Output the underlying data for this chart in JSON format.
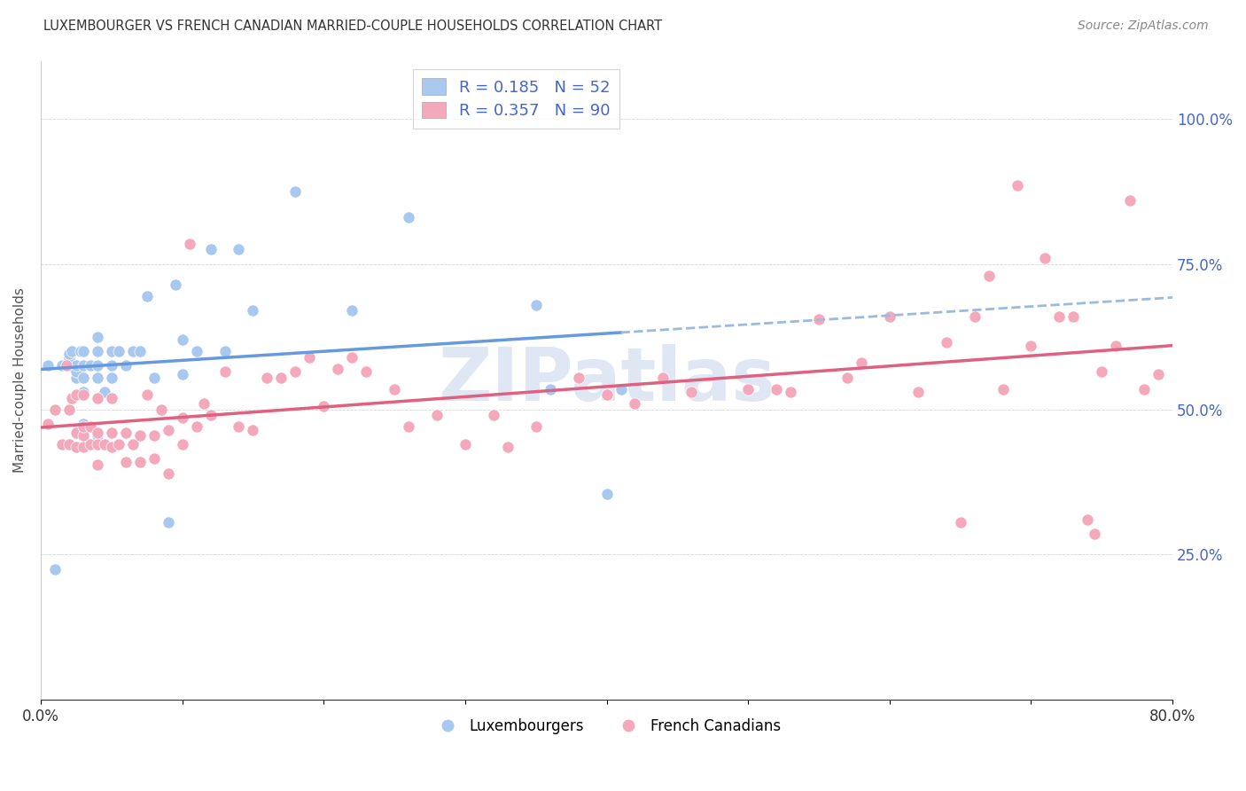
{
  "title": "LUXEMBOURGER VS FRENCH CANADIAN MARRIED-COUPLE HOUSEHOLDS CORRELATION CHART",
  "source": "Source: ZipAtlas.com",
  "ylabel": "Married-couple Households",
  "xlim": [
    0.0,
    0.8
  ],
  "ylim": [
    0.0,
    1.1
  ],
  "yticks": [
    0.0,
    0.25,
    0.5,
    0.75,
    1.0
  ],
  "ytick_labels": [
    "",
    "25.0%",
    "50.0%",
    "75.0%",
    "100.0%"
  ],
  "xticks": [
    0.0,
    0.1,
    0.2,
    0.3,
    0.4,
    0.5,
    0.6,
    0.7,
    0.8
  ],
  "color_blue": "#A8C8F0",
  "color_pink": "#F4A8BC",
  "trendline_blue_solid": "#6699DD",
  "trendline_blue_dashed": "#99BBDD",
  "trendline_pink_solid": "#E06080",
  "R_blue": 0.185,
  "N_blue": 52,
  "R_pink": 0.357,
  "N_pink": 90,
  "blue_x": [
    0.005,
    0.01,
    0.015,
    0.018,
    0.02,
    0.02,
    0.02,
    0.02,
    0.02,
    0.022,
    0.025,
    0.025,
    0.025,
    0.028,
    0.03,
    0.03,
    0.03,
    0.03,
    0.03,
    0.035,
    0.04,
    0.04,
    0.04,
    0.04,
    0.04,
    0.045,
    0.05,
    0.05,
    0.05,
    0.055,
    0.06,
    0.065,
    0.07,
    0.07,
    0.075,
    0.08,
    0.09,
    0.095,
    0.1,
    0.1,
    0.11,
    0.12,
    0.13,
    0.14,
    0.15,
    0.18,
    0.22,
    0.26,
    0.35,
    0.36,
    0.4,
    0.41
  ],
  "blue_y": [
    0.575,
    0.225,
    0.575,
    0.575,
    0.575,
    0.58,
    0.585,
    0.59,
    0.595,
    0.6,
    0.555,
    0.565,
    0.575,
    0.6,
    0.475,
    0.53,
    0.555,
    0.575,
    0.6,
    0.575,
    0.455,
    0.555,
    0.575,
    0.6,
    0.625,
    0.53,
    0.555,
    0.575,
    0.6,
    0.6,
    0.575,
    0.6,
    0.41,
    0.6,
    0.695,
    0.555,
    0.305,
    0.715,
    0.56,
    0.62,
    0.6,
    0.775,
    0.6,
    0.775,
    0.67,
    0.875,
    0.67,
    0.83,
    0.68,
    0.535,
    0.355,
    0.535
  ],
  "pink_x": [
    0.005,
    0.01,
    0.015,
    0.018,
    0.02,
    0.02,
    0.022,
    0.025,
    0.025,
    0.025,
    0.03,
    0.03,
    0.03,
    0.03,
    0.035,
    0.035,
    0.04,
    0.04,
    0.04,
    0.04,
    0.045,
    0.05,
    0.05,
    0.05,
    0.055,
    0.06,
    0.06,
    0.065,
    0.07,
    0.07,
    0.075,
    0.08,
    0.08,
    0.085,
    0.09,
    0.09,
    0.1,
    0.1,
    0.105,
    0.11,
    0.115,
    0.12,
    0.13,
    0.14,
    0.15,
    0.16,
    0.17,
    0.18,
    0.19,
    0.2,
    0.21,
    0.22,
    0.23,
    0.25,
    0.26,
    0.28,
    0.3,
    0.32,
    0.33,
    0.35,
    0.38,
    0.4,
    0.42,
    0.44,
    0.46,
    0.5,
    0.52,
    0.53,
    0.55,
    0.57,
    0.58,
    0.6,
    0.62,
    0.64,
    0.65,
    0.66,
    0.67,
    0.68,
    0.69,
    0.7,
    0.71,
    0.72,
    0.73,
    0.74,
    0.745,
    0.75,
    0.76,
    0.77,
    0.78,
    0.79
  ],
  "pink_y": [
    0.475,
    0.5,
    0.44,
    0.575,
    0.44,
    0.5,
    0.52,
    0.435,
    0.46,
    0.525,
    0.435,
    0.455,
    0.47,
    0.525,
    0.44,
    0.47,
    0.405,
    0.44,
    0.46,
    0.52,
    0.44,
    0.435,
    0.46,
    0.52,
    0.44,
    0.41,
    0.46,
    0.44,
    0.41,
    0.455,
    0.525,
    0.415,
    0.455,
    0.5,
    0.39,
    0.465,
    0.44,
    0.485,
    0.785,
    0.47,
    0.51,
    0.49,
    0.565,
    0.47,
    0.465,
    0.555,
    0.555,
    0.565,
    0.59,
    0.505,
    0.57,
    0.59,
    0.565,
    0.535,
    0.47,
    0.49,
    0.44,
    0.49,
    0.435,
    0.47,
    0.555,
    0.525,
    0.51,
    0.555,
    0.53,
    0.535,
    0.535,
    0.53,
    0.655,
    0.555,
    0.58,
    0.66,
    0.53,
    0.615,
    0.305,
    0.66,
    0.73,
    0.535,
    0.885,
    0.61,
    0.76,
    0.66,
    0.66,
    0.31,
    0.285,
    0.565,
    0.61,
    0.86,
    0.535,
    0.56
  ],
  "watermark": "ZIPatlas",
  "watermark_color": "#C8D8EC",
  "background_color": "#FFFFFF",
  "legend_text_color": "#4466CC",
  "legend_label_color": "#333333",
  "right_axis_color": "#4466CC",
  "bottom_legend_labels": [
    "Luxembourgers",
    "French Canadians"
  ]
}
